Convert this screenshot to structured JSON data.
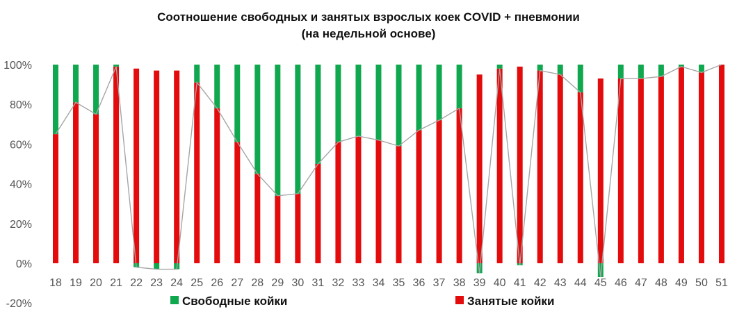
{
  "chart_data": {
    "type": "bar",
    "stacked": true,
    "title": "Соотношение свободных и занятых взрослых коек COVID + пневмонии",
    "subtitle": "(на недельной основе)",
    "categories": [
      "18",
      "19",
      "20",
      "21",
      "22",
      "23",
      "24",
      "25",
      "26",
      "27",
      "28",
      "29",
      "30",
      "31",
      "32",
      "33",
      "34",
      "35",
      "36",
      "37",
      "38",
      "39",
      "40",
      "41",
      "42",
      "43",
      "44",
      "45",
      "46",
      "47",
      "48",
      "49",
      "50",
      "51"
    ],
    "series": [
      {
        "name": "Свободные койки",
        "color": "#10a84e",
        "values": [
          35,
          19,
          25,
          1,
          -2,
          -3,
          -3,
          9,
          22,
          39,
          55,
          66,
          65,
          50,
          39,
          36,
          38,
          41,
          33,
          28,
          22,
          -5,
          2,
          -1,
          3,
          5,
          14,
          -7,
          7,
          7,
          6,
          1,
          4,
          0
        ]
      },
      {
        "name": "Занятые койки",
        "color": "#e30b0b",
        "values": [
          65,
          81,
          75,
          99,
          98,
          97,
          97,
          91,
          78,
          61,
          45,
          34,
          35,
          50,
          61,
          64,
          62,
          59,
          67,
          72,
          78,
          95,
          98,
          99,
          97,
          95,
          86,
          93,
          93,
          93,
          94,
          99,
          96,
          100
        ]
      }
    ],
    "line": {
      "color": "#a6a6a6",
      "values": [
        65,
        81,
        75,
        99,
        -2,
        -3,
        -3,
        91,
        78,
        61,
        45,
        34,
        35,
        50,
        61,
        64,
        62,
        59,
        67,
        72,
        78,
        -5,
        98,
        -1,
        97,
        95,
        86,
        -7,
        93,
        93,
        94,
        99,
        96,
        100
      ]
    },
    "yaxis": {
      "min": -20,
      "max": 100,
      "step": 20,
      "format": "percent"
    },
    "ytick_labels": [
      "-20%",
      "0%",
      "20%",
      "40%",
      "60%",
      "80%",
      "100%"
    ],
    "legend_position": "bottom",
    "grid": false
  }
}
